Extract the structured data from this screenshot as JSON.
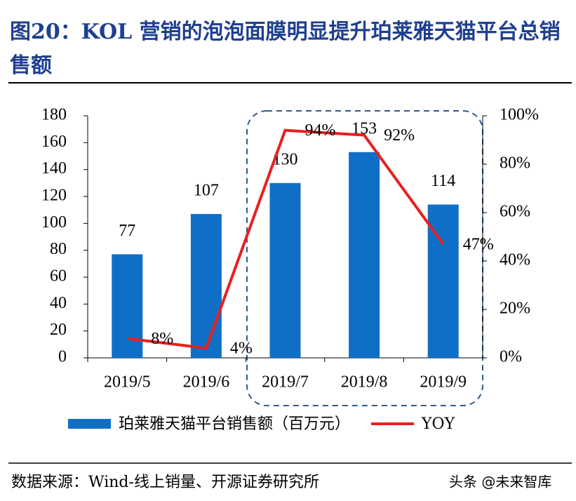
{
  "chart_data": {
    "type": "bar",
    "title": "图20：KOL 营销的泡泡面膜明显提升珀莱雅天猫平台总销售额",
    "categories": [
      "2019/5",
      "2019/6",
      "2019/7",
      "2019/8",
      "2019/9"
    ],
    "series": [
      {
        "name": "珀莱雅天猫平台销售额（百万元）",
        "type": "bar",
        "color": "#0f6fc6",
        "values": [
          77,
          107,
          130,
          153,
          114
        ]
      },
      {
        "name": "YOY",
        "type": "line",
        "color": "#e8201f",
        "axis": "y2",
        "values": [
          8,
          4,
          94,
          92,
          47
        ],
        "value_labels": [
          "8%",
          "4%",
          "94%",
          "92%",
          "47%"
        ]
      }
    ],
    "ylim": [
      0,
      180
    ],
    "yticks": [
      0,
      20,
      40,
      60,
      80,
      100,
      120,
      140,
      160,
      180
    ],
    "y2lim": [
      0,
      100
    ],
    "y2ticks": [
      {
        "value": 0,
        "label": "0%"
      },
      {
        "value": 20,
        "label": "20%"
      },
      {
        "value": 40,
        "label": "40%"
      },
      {
        "value": 60,
        "label": "60%"
      },
      {
        "value": 80,
        "label": "80%"
      },
      {
        "value": 100,
        "label": "100%"
      }
    ],
    "source": "数据来源：Wind-线上销量、开源证券研究所",
    "watermark": "头条 @未来智库"
  }
}
